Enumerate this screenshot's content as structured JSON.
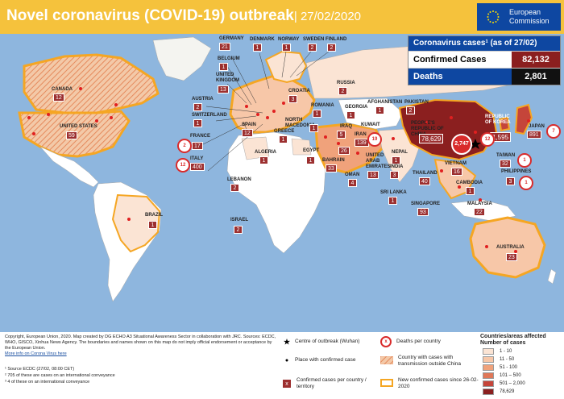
{
  "header": {
    "title": "Novel coronavirus (COVID-19) outbreak",
    "date": "| 27/02/2020",
    "ec_line1": "European",
    "ec_line2": "Commission"
  },
  "stats": {
    "heading": "Coronavirus cases¹ (as of 27/02)",
    "confirmed_label": "Confirmed Cases",
    "confirmed_value": "82,132",
    "deaths_label": "Deaths",
    "deaths_value": "2,801"
  },
  "countries": [
    {
      "name": "CANADA",
      "cases": "12"
    },
    {
      "name": "UNITED STATES",
      "cases": "59"
    },
    {
      "name": "BRAZIL",
      "cases": "1"
    },
    {
      "name": "GERMANY",
      "cases": "21"
    },
    {
      "name": "DENMARK",
      "cases": "1"
    },
    {
      "name": "NORWAY",
      "cases": "1"
    },
    {
      "name": "SWEDEN",
      "cases": "2"
    },
    {
      "name": "FINLAND",
      "cases": "2"
    },
    {
      "name": "BELGIUM",
      "cases": "1"
    },
    {
      "name": "UNITED KINGDOM",
      "cases": "13"
    },
    {
      "name": "AUSTRIA",
      "cases": "2"
    },
    {
      "name": "SWITZERLAND",
      "cases": "1"
    },
    {
      "name": "FRANCE",
      "cases": "17"
    },
    {
      "name": "ITALY",
      "cases": "400"
    },
    {
      "name": "SPAIN",
      "cases": "12"
    },
    {
      "name": "CROATIA",
      "cases": "3"
    },
    {
      "name": "ROMANIA",
      "cases": "1"
    },
    {
      "name": "NORTH MACEDONIA",
      "cases": "1"
    },
    {
      "name": "GREECE",
      "cases": "1"
    },
    {
      "name": "ALGERIA",
      "cases": "1"
    },
    {
      "name": "EGYPT",
      "cases": "1"
    },
    {
      "name": "LEBANON",
      "cases": "2"
    },
    {
      "name": "ISRAEL",
      "cases": "2"
    },
    {
      "name": "RUSSIA",
      "cases": "2"
    },
    {
      "name": "GEORGIA",
      "cases": "1"
    },
    {
      "name": "AFGHANISTAN",
      "cases": "1"
    },
    {
      "name": "PAKISTAN",
      "cases": "2"
    },
    {
      "name": "IRAN",
      "cases": "139"
    },
    {
      "name": "IRAQ",
      "cases": "5"
    },
    {
      "name": "KUWAIT",
      "cases": "26"
    },
    {
      "name": "BAHRAIN",
      "cases": "33"
    },
    {
      "name": "OMAN",
      "cases": "4"
    },
    {
      "name": "UNITED ARAB EMIRATES",
      "cases": "13"
    },
    {
      "name": "NEPAL",
      "cases": "1"
    },
    {
      "name": "INDIA",
      "cases": "3"
    },
    {
      "name": "SRI LANKA",
      "cases": "1"
    },
    {
      "name": "PEOPLE'S REPUBLIC OF CHINA",
      "cases": "78,629"
    },
    {
      "name": "REPUBLIC OF KOREA",
      "cases": "1,595"
    },
    {
      "name": "JAPAN",
      "cases": "891"
    },
    {
      "name": "TAIWAN",
      "cases": "32"
    },
    {
      "name": "VIETNAM",
      "cases": "16"
    },
    {
      "name": "THAILAND",
      "cases": "40"
    },
    {
      "name": "CAMBODIA",
      "cases": "1"
    },
    {
      "name": "PHILIPPINES",
      "cases": "3"
    },
    {
      "name": "SINGAPORE",
      "cases": "93"
    },
    {
      "name": "MALAYSIA",
      "cases": "22"
    },
    {
      "name": "AUSTRALIA",
      "cases": "23"
    }
  ],
  "deaths": [
    {
      "place": "china",
      "count": "2,747"
    },
    {
      "place": "korea",
      "count": "12"
    },
    {
      "place": "japan",
      "count": "7"
    },
    {
      "place": "iran",
      "count": "19"
    },
    {
      "place": "italy",
      "count": "12"
    },
    {
      "place": "france",
      "count": "2"
    },
    {
      "place": "taiwan",
      "count": "1"
    },
    {
      "place": "philippines",
      "count": "1"
    }
  ],
  "footer": {
    "copyright": "Copyright, European Union, 2020. Map created by DG ECHO A3 Situational Awareness Sector in collaboration with JRC. Sources: ECDC, WHO, GISCO, Xinhua News Agency. The boundaries and names shown on this map do not imply official endorsement or acceptance by the European Union.",
    "link": "More info on Corona Virus here",
    "note1": "¹ Source ECDC (27/02, 08:00 CET)",
    "note2": "² 705 of these are cases on an international conveyance",
    "note3": "³ 4 of these on an international conveyance"
  },
  "legend": {
    "centre": "Centre of outbreak (Wuhan)",
    "place": "Place with confirmed case",
    "deaths": "Deaths per country",
    "deaths_symbol": "x",
    "transmission": "Country with cases with transmission outside China",
    "confirmed": "Confirmed cases per country / territory",
    "confirmed_symbol": "x",
    "new": "New confirmed cases since 26-02-2020",
    "scale_title_1": "Countries/areas affected",
    "scale_title_2": "Number of cases",
    "scale": [
      {
        "range": "1 - 10",
        "color": "#fbe4d4"
      },
      {
        "range": "11 - 50",
        "color": "#f7c7a8"
      },
      {
        "range": "51 - 100",
        "color": "#f0a27b"
      },
      {
        "range": "101 – 500",
        "color": "#e07758"
      },
      {
        "range": "501 – 2,000",
        "color": "#c5453a"
      },
      {
        "range": "78,629",
        "color": "#8b1f1f"
      }
    ]
  },
  "colors": {
    "header": "#f5c23c",
    "ec_blue": "#0e47a1",
    "ocean": "#8eb6de",
    "case_box": "#9c2f2f",
    "death_red": "#d92b2b",
    "new_case": "#f5a623"
  }
}
